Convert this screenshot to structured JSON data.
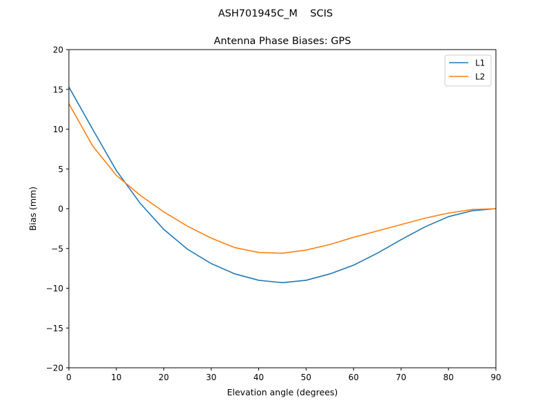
{
  "chart_data": {
    "type": "line",
    "suptitle": "ASH701945C_M    SCIS",
    "title": "Antenna Phase Biases: GPS",
    "xlabel": "Elevation angle (degrees)",
    "ylabel": "Bias (mm)",
    "xlim": [
      0,
      90
    ],
    "ylim": [
      -20,
      20
    ],
    "xticks": [
      "0",
      "10",
      "20",
      "30",
      "40",
      "50",
      "60",
      "70",
      "80",
      "90"
    ],
    "yticks": [
      "−20",
      "−15",
      "−10",
      "−5",
      "0",
      "5",
      "10",
      "15",
      "20"
    ],
    "grid": false,
    "legend_position": "top-right",
    "x": [
      0,
      5,
      10,
      15,
      20,
      25,
      30,
      35,
      40,
      45,
      50,
      55,
      60,
      65,
      70,
      75,
      80,
      85,
      90
    ],
    "series": [
      {
        "name": "L1",
        "color": "#1f77b4",
        "values": [
          15.3,
          10.0,
          4.8,
          0.7,
          -2.6,
          -5.1,
          -6.9,
          -8.2,
          -9.0,
          -9.3,
          -9.0,
          -8.2,
          -7.1,
          -5.6,
          -3.9,
          -2.3,
          -1.0,
          -0.26,
          0.0
        ]
      },
      {
        "name": "L2",
        "color": "#ff7f0e",
        "values": [
          13.2,
          7.9,
          4.2,
          1.7,
          -0.4,
          -2.2,
          -3.7,
          -4.9,
          -5.5,
          -5.6,
          -5.2,
          -4.5,
          -3.6,
          -2.8,
          -2.0,
          -1.2,
          -0.55,
          -0.1,
          0.0
        ]
      }
    ]
  }
}
